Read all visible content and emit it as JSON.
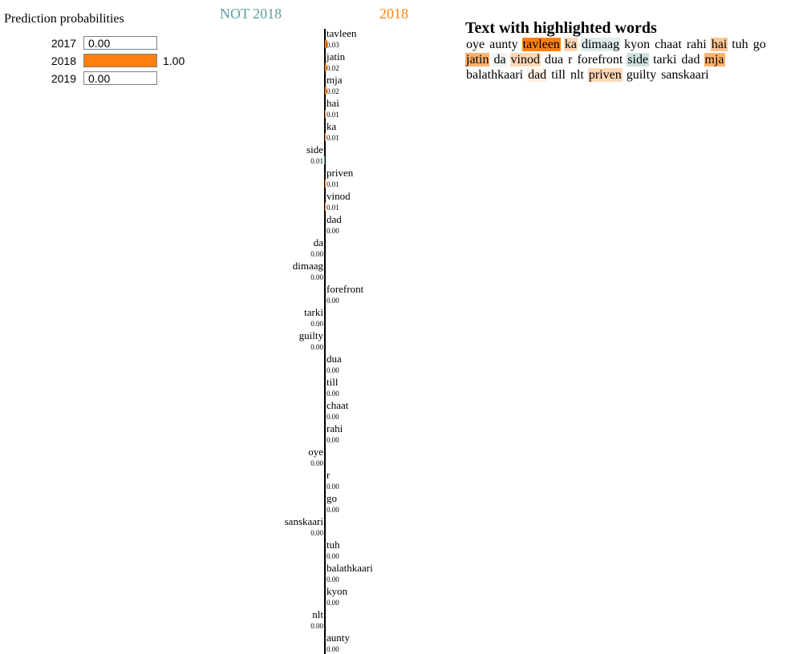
{
  "probabilities": {
    "title": "Prediction probabilities",
    "bar_color": "#ff7f0e",
    "items": [
      {
        "label": "2017",
        "value": 0.0,
        "value_text": "0.00"
      },
      {
        "label": "2018",
        "value": 1.0,
        "value_text": "1.00"
      },
      {
        "label": "2019",
        "value": 0.0,
        "value_text": "0.00"
      }
    ]
  },
  "features": {
    "negative_label": "NOT 2018",
    "positive_label": "2018",
    "negative_color": "#5f9ea0",
    "positive_color": "#ff7f0e"
  },
  "chart_data": {
    "type": "bar",
    "orientation": "horizontal",
    "categories": [
      "tavleen",
      "jatin",
      "mja",
      "hai",
      "ka",
      "side",
      "priven",
      "vinod",
      "dad",
      "da",
      "dimaag",
      "forefront",
      "tarki",
      "guilty",
      "dua",
      "till",
      "chaat",
      "rahi",
      "oye",
      "r",
      "go",
      "sanskaari",
      "tuh",
      "balathkaari",
      "kyon",
      "nlt",
      "aunty"
    ],
    "values": [
      0.03,
      0.02,
      0.02,
      0.01,
      0.01,
      -0.01,
      0.01,
      0.01,
      0.0,
      -0.0,
      -0.0,
      0.0,
      -0.0,
      -0.0,
      0.0,
      0.0,
      0.0,
      0.0,
      -0.0,
      0.0,
      0.0,
      -0.0,
      0.0,
      0.0,
      0.0,
      -0.0,
      0.0
    ],
    "value_labels": [
      "0.03",
      "0.02",
      "0.02",
      "0.01",
      "0.01",
      "0.01",
      "0.01",
      "0.01",
      "0.00",
      "0.00",
      "0.00",
      "0.00",
      "0.00",
      "0.00",
      "0.00",
      "0.00",
      "0.00",
      "0.00",
      "0.00",
      "0.00",
      "0.00",
      "0.00",
      "0.00",
      "0.00",
      "0.00",
      "0.00",
      "0.00"
    ],
    "xlim": [
      -0.03,
      0.03
    ]
  },
  "text_panel": {
    "title": "Text with highlighted words",
    "words": [
      {
        "text": "oye",
        "weight": 0.0,
        "class": "neg"
      },
      {
        "text": "aunty",
        "weight": 0.0,
        "class": "pos"
      },
      {
        "text": "tavleen",
        "weight": 1.0,
        "class": "pos"
      },
      {
        "text": "ka",
        "weight": 0.3,
        "class": "pos"
      },
      {
        "text": "dimaag",
        "weight": 0.2,
        "class": "neg"
      },
      {
        "text": "kyon",
        "weight": 0.0,
        "class": "pos"
      },
      {
        "text": "chaat",
        "weight": 0.0,
        "class": "pos"
      },
      {
        "text": "rahi",
        "weight": 0.0,
        "class": "pos"
      },
      {
        "text": "hai",
        "weight": 0.45,
        "class": "pos"
      },
      {
        "text": "tuh",
        "weight": 0.0,
        "class": "pos"
      },
      {
        "text": "go",
        "weight": 0.0,
        "class": "pos"
      },
      {
        "text": "jatin",
        "weight": 0.6,
        "class": "pos"
      },
      {
        "text": "da",
        "weight": 0.1,
        "class": "neg"
      },
      {
        "text": "vinod",
        "weight": 0.3,
        "class": "pos"
      },
      {
        "text": "dua",
        "weight": 0.0,
        "class": "pos"
      },
      {
        "text": "r",
        "weight": 0.0,
        "class": "pos"
      },
      {
        "text": "forefront",
        "weight": 0.0,
        "class": "pos"
      },
      {
        "text": "side",
        "weight": 0.3,
        "class": "neg"
      },
      {
        "text": "tarki",
        "weight": 0.0,
        "class": "neg"
      },
      {
        "text": "dad",
        "weight": 0.0,
        "class": "pos"
      },
      {
        "text": "mja",
        "weight": 0.6,
        "class": "pos"
      },
      {
        "text": "balathkaari",
        "weight": 0.0,
        "class": "pos"
      },
      {
        "text": "dad",
        "weight": 0.1,
        "class": "pos"
      },
      {
        "text": "till",
        "weight": 0.0,
        "class": "pos"
      },
      {
        "text": "nlt",
        "weight": 0.0,
        "class": "neg"
      },
      {
        "text": "priven",
        "weight": 0.3,
        "class": "pos"
      },
      {
        "text": "guilty",
        "weight": 0.0,
        "class": "neg"
      },
      {
        "text": "sanskaari",
        "weight": 0.0,
        "class": "neg"
      }
    ]
  }
}
